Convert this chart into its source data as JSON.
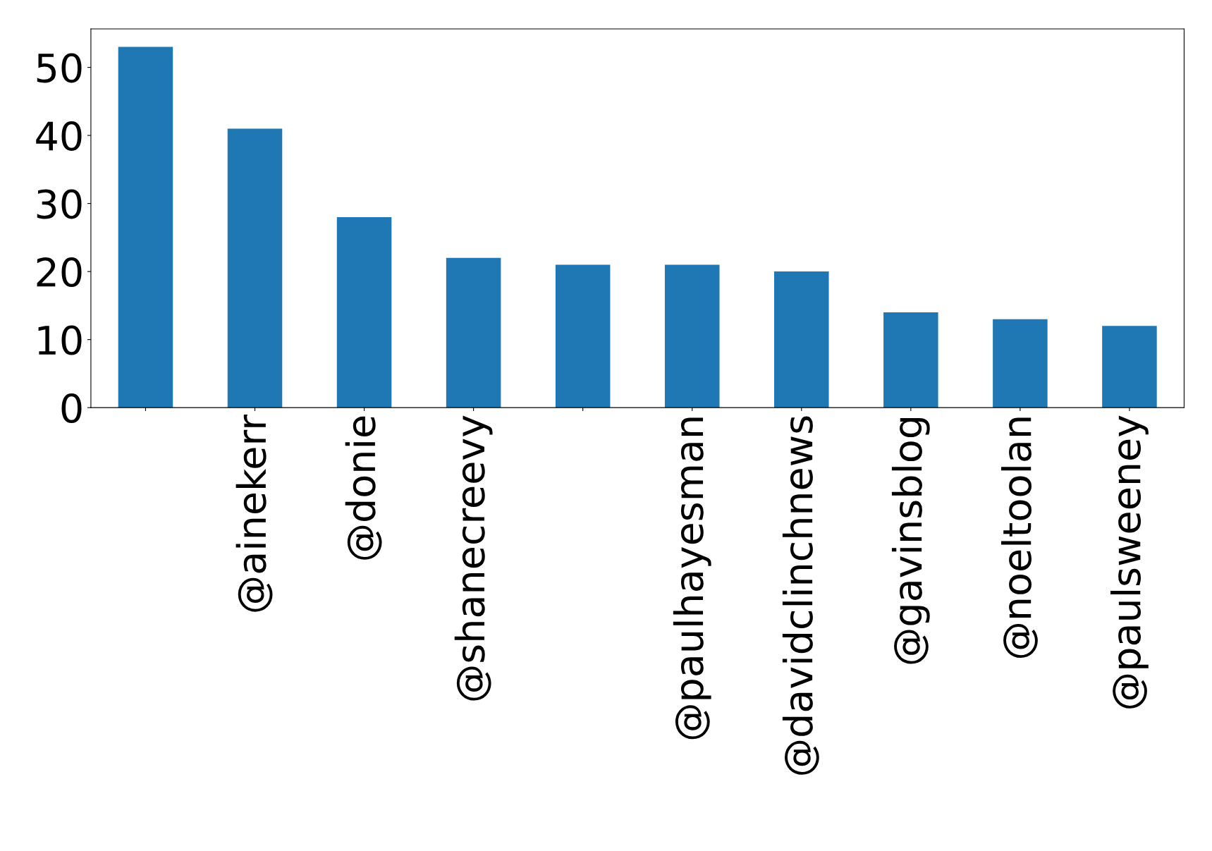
{
  "chart_data": {
    "type": "bar",
    "categories": [
      null,
      "@ainekerr",
      "@donie",
      "@shanecreevy",
      null,
      "@paulhayesman",
      "@davidclinchnews",
      "@gavinsblog",
      "@noeltoolan",
      "@paulsweeney"
    ],
    "values": [
      53,
      41,
      28,
      22,
      21,
      21,
      20,
      14,
      13,
      12
    ],
    "color": "#1f77b4",
    "ylim": [
      0,
      55.65
    ],
    "yticks": [
      0,
      10,
      20,
      30,
      40,
      50
    ],
    "grid": false,
    "legend": false
  }
}
